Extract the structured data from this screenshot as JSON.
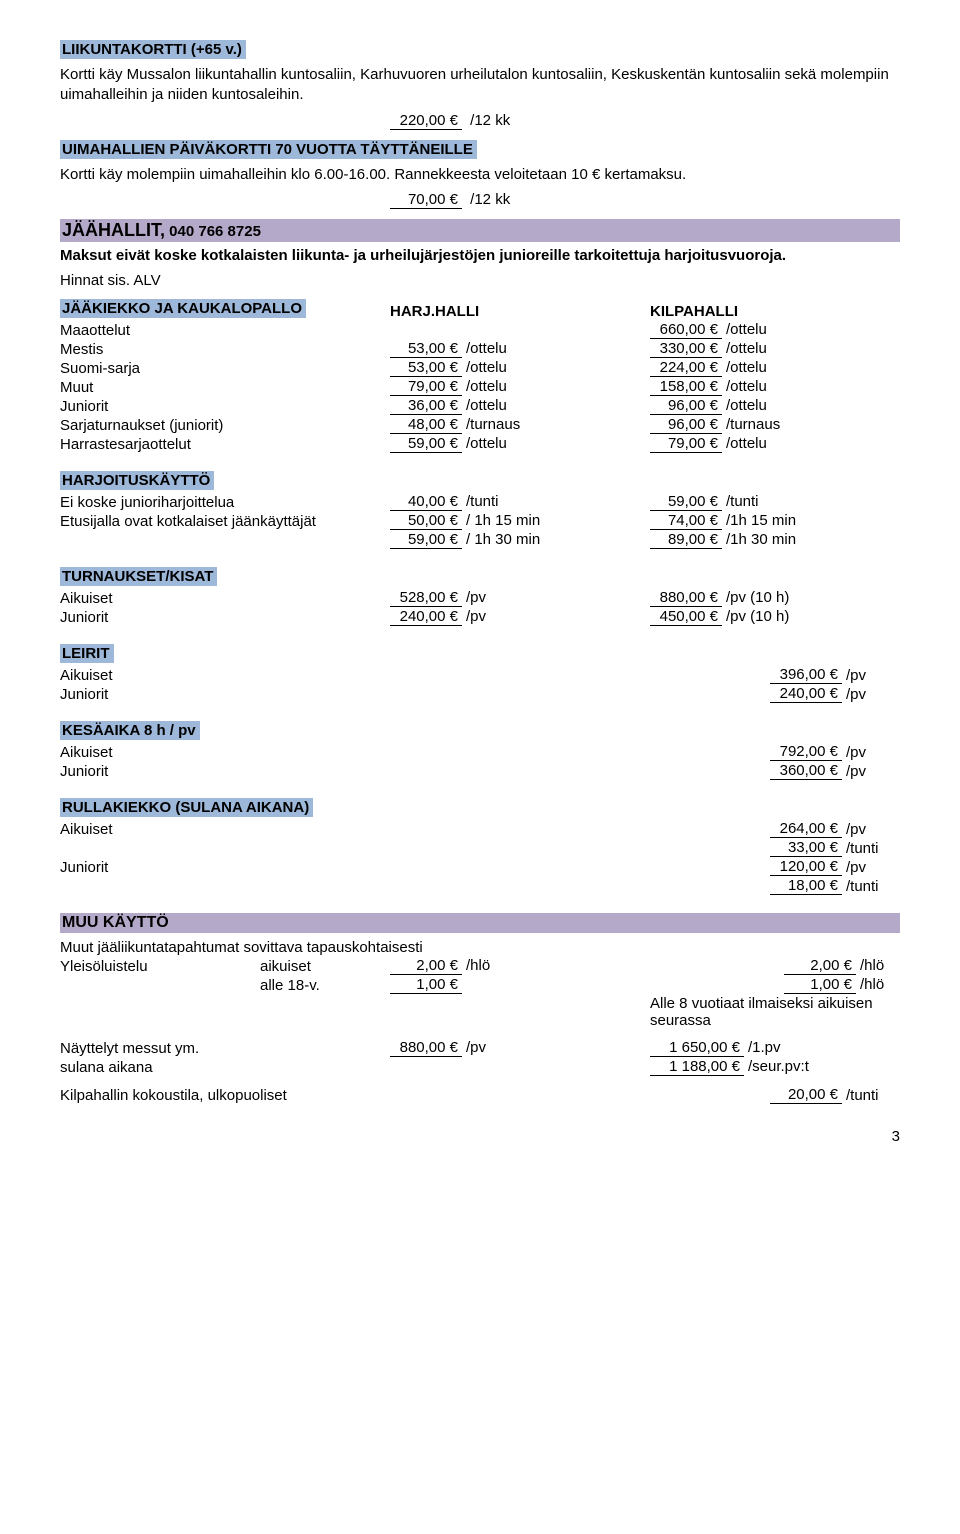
{
  "liikuntakortti": {
    "title": "LIIKUNTAKORTTI (+65 v.)",
    "desc": "Kortti käy Mussalon liikuntahallin kuntosaliin, Karhuvuoren urheilutalon kuntosaliin, Keskuskentän kuntosaliin sekä molempiin uimahalleihin ja niiden kuntosaleihin.",
    "price": "220,00 €",
    "unit": "/12 kk"
  },
  "uimahalli": {
    "title": "UIMAHALLIEN PÄIVÄKORTTI 70 VUOTTA TÄYTTÄNEILLE",
    "desc": "Kortti käy molempiin uimahalleihin klo 6.00-16.00. Rannekkeesta veloitetaan 10 € kertamaksu.",
    "price": "70,00 €",
    "unit": "/12 kk"
  },
  "jaahallit": {
    "title": "JÄÄHALLIT,",
    "phone": "040 766 8725",
    "note1": "Maksut eivät koske kotkalaisten liikunta- ja urheilujärjestöjen junioreille tarkoitettuja harjoitusvuoroja.",
    "note2": "Hinnat sis. ALV"
  },
  "jaakiekko": {
    "title": "JÄÄKIEKKO JA KAUKALOPALLO",
    "col1": "HARJ.HALLI",
    "col2": "KILPAHALLI",
    "rows": [
      {
        "label": "Maaottelut",
        "p1": "",
        "u1": "",
        "p2": "660,00 €",
        "u2": "/ottelu"
      },
      {
        "label": "Mestis",
        "p1": "53,00 €",
        "u1": "/ottelu",
        "p2": "330,00 €",
        "u2": "/ottelu"
      },
      {
        "label": "Suomi-sarja",
        "p1": "53,00 €",
        "u1": "/ottelu",
        "p2": "224,00 €",
        "u2": "/ottelu"
      },
      {
        "label": "Muut",
        "p1": "79,00 €",
        "u1": "/ottelu",
        "p2": "158,00 €",
        "u2": "/ottelu"
      },
      {
        "label": "Juniorit",
        "p1": "36,00 €",
        "u1": "/ottelu",
        "p2": "96,00 €",
        "u2": "/ottelu"
      },
      {
        "label": "Sarjaturnaukset (juniorit)",
        "p1": "48,00 €",
        "u1": "/turnaus",
        "p2": "96,00 €",
        "u2": "/turnaus"
      },
      {
        "label": "Harrastesarjaottelut",
        "p1": "59,00 €",
        "u1": "/ottelu",
        "p2": "79,00 €",
        "u2": "/ottelu"
      }
    ]
  },
  "harjoitus": {
    "title": "HARJOITUSKÄYTTÖ",
    "rows": [
      {
        "label": "Ei koske junioriharjoittelua",
        "p1": "40,00 €",
        "u1": "/tunti",
        "p2": "59,00 €",
        "u2": "/tunti"
      },
      {
        "label": "Etusijalla ovat kotkalaiset jäänkäyttäjät",
        "p1": "50,00 €",
        "u1": "/ 1h 15 min",
        "p2": "74,00 €",
        "u2": "/1h 15 min"
      },
      {
        "label": "",
        "p1": "59,00 €",
        "u1": "/ 1h 30 min",
        "p2": "89,00 €",
        "u2": "/1h 30 min"
      }
    ]
  },
  "turnaukset": {
    "title": "TURNAUKSET/KISAT",
    "rows": [
      {
        "label": "Aikuiset",
        "p1": "528,00 €",
        "u1": "/pv",
        "p2": "880,00 €",
        "u2": "/pv (10 h)"
      },
      {
        "label": "Juniorit",
        "p1": "240,00 €",
        "u1": "/pv",
        "p2": "450,00 €",
        "u2": "/pv (10 h)"
      }
    ]
  },
  "leirit": {
    "title": "LEIRIT",
    "rows": [
      {
        "label": "Aikuiset",
        "p": "396,00 €",
        "u": "/pv"
      },
      {
        "label": "Juniorit",
        "p": "240,00 €",
        "u": "/pv"
      }
    ]
  },
  "kesa": {
    "title": "KESÄAIKA 8 h / pv",
    "rows": [
      {
        "label": "Aikuiset",
        "p": "792,00 €",
        "u": "/pv"
      },
      {
        "label": "Juniorit",
        "p": "360,00 €",
        "u": "/pv"
      }
    ]
  },
  "rulla": {
    "title": "RULLAKIEKKO (SULANA AIKANA)",
    "rows": [
      {
        "label": "Aikuiset",
        "p": "264,00 €",
        "u": "/pv"
      },
      {
        "label": "",
        "p": "33,00 €",
        "u": "/tunti"
      },
      {
        "label": "Juniorit",
        "p": "120,00 €",
        "u": "/pv"
      },
      {
        "label": "",
        "p": "18,00 €",
        "u": "/tunti"
      }
    ]
  },
  "muu": {
    "title": "MUU KÄYTTÖ",
    "line1": "Muut jääliikuntatapahtumat sovittava tapauskohtaisesti",
    "rows": [
      {
        "label": "Yleisöluistelu",
        "sub": "aikuiset",
        "p1": "2,00 €",
        "u1": "/hlö",
        "p2": "2,00 €",
        "u2": "/hlö"
      },
      {
        "label": "",
        "sub": "alle 18-v.",
        "p1": "1,00 €",
        "u1": "",
        "p2": "1,00 €",
        "u2": "/hlö"
      }
    ],
    "note": "Alle 8 vuotiaat ilmaiseksi aikuisen seurassa",
    "nayttelyt_label": "Näyttelyt messut ym.",
    "nayttelyt_p1": "880,00 €",
    "nayttelyt_u1": "/pv",
    "nayttelyt_p2": "1 650,00 €",
    "nayttelyt_u2": "/1.pv",
    "sulana_label": "sulana aikana",
    "sulana_p": "1 188,00 €",
    "sulana_u": "/seur.pv:t",
    "kokous_label": "Kilpahallin kokoustila, ulkopuoliset",
    "kokous_p": "20,00 €",
    "kokous_u": "/tunti"
  },
  "page": "3"
}
